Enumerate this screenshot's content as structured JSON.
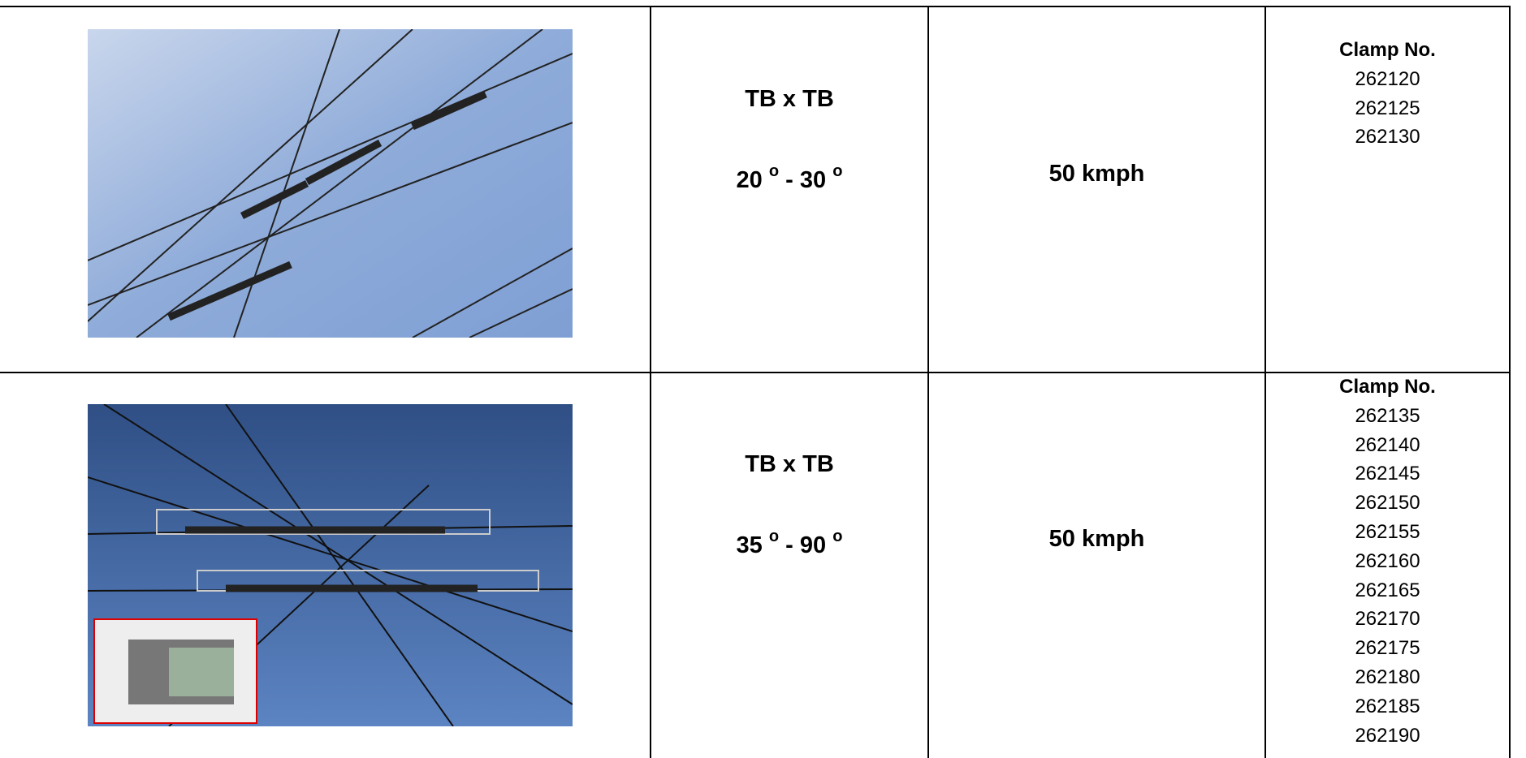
{
  "rows": [
    {
      "type": "TB x TB",
      "angle_from": "20",
      "angle_to": "30",
      "degree_mark": "o",
      "separator": "-",
      "speed": "50 kmph",
      "clamp_heading": "Clamp No.",
      "clamps": [
        "262120",
        "262125",
        "262130"
      ]
    },
    {
      "type": "TB x TB",
      "angle_from": "35",
      "angle_to": "90",
      "degree_mark": "o",
      "separator": "-",
      "speed": "50 kmph",
      "clamp_heading": "Clamp No.",
      "clamps": [
        "262135",
        "262140",
        "262145",
        "262150",
        "262155",
        "262160",
        "262165",
        "262170",
        "262175",
        "262180",
        "262185",
        "262190"
      ]
    }
  ]
}
